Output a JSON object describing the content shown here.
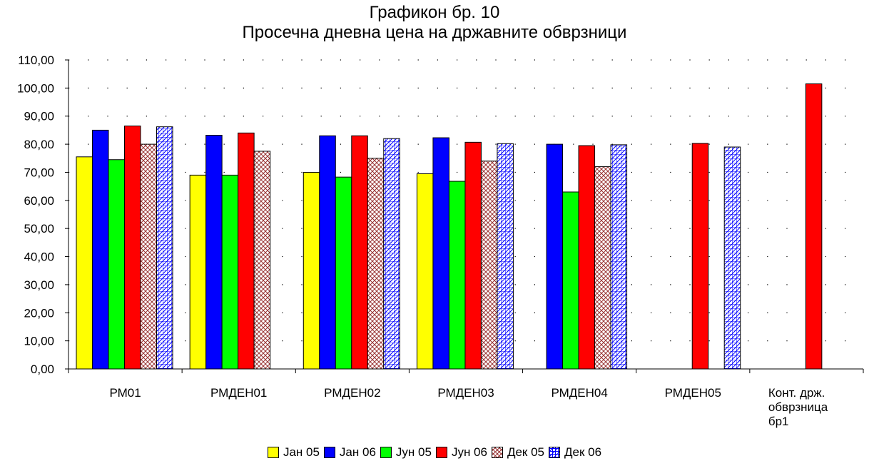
{
  "chart_data": {
    "type": "bar",
    "title": "Графикон бр. 10",
    "subtitle": "Просечна дневна  цена на државните обврзници",
    "categories": [
      "РМ01",
      "РМДЕН01",
      "РМДЕН02",
      "РМДЕН03",
      "РМДЕН04",
      "РМДЕН05",
      "Конт. држ.\nобврзница\nбр1"
    ],
    "y_ticks": [
      "0,00",
      "10,00",
      "20,00",
      "30,00",
      "40,00",
      "50,00",
      "60,00",
      "70,00",
      "80,00",
      "90,00",
      "100,00",
      "110,00"
    ],
    "ylim": [
      0,
      110
    ],
    "grid": "dotted",
    "legend_position": "bottom",
    "series": [
      {
        "name": "Јан 05",
        "color": "#FFFF00",
        "pattern": "solid",
        "values": [
          75.5,
          69,
          70,
          69.5,
          null,
          null,
          null
        ]
      },
      {
        "name": "Јан 06",
        "color": "#0000FF",
        "pattern": "solid",
        "values": [
          85,
          83.2,
          83,
          82.3,
          80,
          null,
          null
        ]
      },
      {
        "name": "Јун 05",
        "color": "#00FF00",
        "pattern": "solid",
        "values": [
          74.5,
          69,
          68.3,
          66.8,
          63,
          null,
          null
        ]
      },
      {
        "name": "Јун  06",
        "color": "#FF0000",
        "pattern": "solid",
        "values": [
          86.5,
          84,
          83,
          80.7,
          79.5,
          80.3,
          101.5
        ]
      },
      {
        "name": "Дек 05",
        "color": "#993333",
        "pattern": "crosshatch",
        "values": [
          80,
          77.5,
          75,
          74,
          72,
          null,
          null
        ]
      },
      {
        "name": "Дек 06",
        "color": "#0000FF",
        "pattern": "grid-diagonal",
        "values": [
          86.2,
          null,
          82,
          80.2,
          79.8,
          79,
          null
        ]
      }
    ]
  }
}
